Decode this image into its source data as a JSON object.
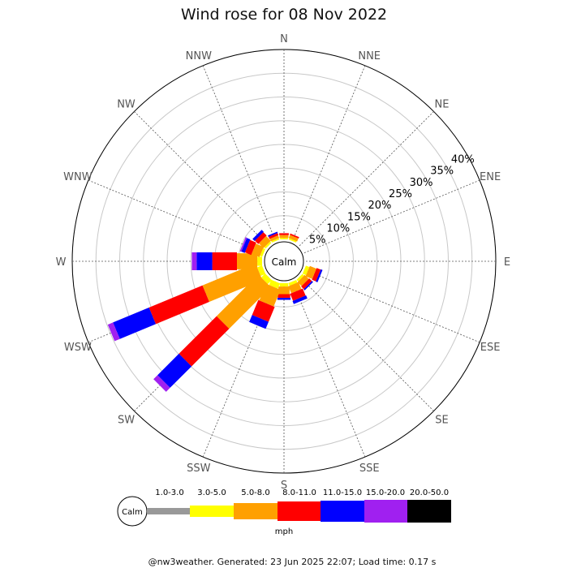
{
  "chart_data": {
    "type": "windrose",
    "title": "Wind rose for 08 Nov 2022",
    "directions": [
      "N",
      "NNE",
      "NE",
      "ENE",
      "E",
      "ESE",
      "SE",
      "SSE",
      "S",
      "SSW",
      "SW",
      "WSW",
      "W",
      "WNW",
      "NW",
      "NNW"
    ],
    "radial_ticks": [
      "5%",
      "10%",
      "15%",
      "20%",
      "25%",
      "30%",
      "35%",
      "40%"
    ],
    "radial_tick_values": [
      5,
      10,
      15,
      20,
      25,
      30,
      35,
      40
    ],
    "rmax": 40,
    "calm_label": "Calm",
    "speed_bins": [
      {
        "label": "1.0-3.0",
        "color": "#999999"
      },
      {
        "label": "3.0-5.0",
        "color": "#ffff00"
      },
      {
        "label": "5.0-8.0",
        "color": "#ffa000"
      },
      {
        "label": "8.0-11.0",
        "color": "#ff0000"
      },
      {
        "label": "11.0-15.0",
        "color": "#0000ff"
      },
      {
        "label": "15.0-20.0",
        "color": "#a020f0"
      },
      {
        "label": "20.0-50.0",
        "color": "#000000"
      }
    ],
    "units": "mph",
    "series": [
      {
        "direction": "N",
        "values": [
          0,
          0.3,
          0.6,
          0.4,
          0,
          0,
          0
        ]
      },
      {
        "direction": "NNE",
        "values": [
          0,
          0.3,
          0.7,
          0.3,
          0,
          0,
          0
        ]
      },
      {
        "direction": "ESE",
        "values": [
          0,
          0.8,
          1.5,
          0.9,
          0.4,
          0,
          0
        ]
      },
      {
        "direction": "SE",
        "values": [
          0,
          0.5,
          1.2,
          0.8,
          0.3,
          0,
          0
        ]
      },
      {
        "direction": "SSE",
        "values": [
          0,
          0.6,
          1.6,
          1.6,
          0.7,
          0,
          0
        ]
      },
      {
        "direction": "S",
        "values": [
          0,
          0.7,
          1.6,
          0.8,
          0.4,
          0,
          0
        ]
      },
      {
        "direction": "SSW",
        "values": [
          0,
          1.2,
          3.8,
          3.4,
          1.6,
          0,
          0
        ]
      },
      {
        "direction": "SW",
        "values": [
          0,
          1.2,
          12.4,
          11.2,
          6.4,
          1.2,
          0
        ]
      },
      {
        "direction": "WSW",
        "values": [
          0,
          1.1,
          12.1,
          12.2,
          8.2,
          1.2,
          0
        ]
      },
      {
        "direction": "W",
        "values": [
          0,
          1.0,
          4.3,
          5.2,
          3.3,
          1.0,
          0
        ]
      },
      {
        "direction": "WNW",
        "values": [
          0,
          0.5,
          1.8,
          1.4,
          0.8,
          0.3,
          0
        ]
      },
      {
        "direction": "NW",
        "values": [
          0,
          0.4,
          1.4,
          1.0,
          0.6,
          0,
          0
        ]
      },
      {
        "direction": "NNW",
        "values": [
          0,
          0.3,
          0.6,
          0.5,
          0.3,
          0,
          0
        ]
      }
    ]
  },
  "footer": "@nw3weather. Generated: 23 Jun 2025 22:07; Load time: 0.17 s"
}
